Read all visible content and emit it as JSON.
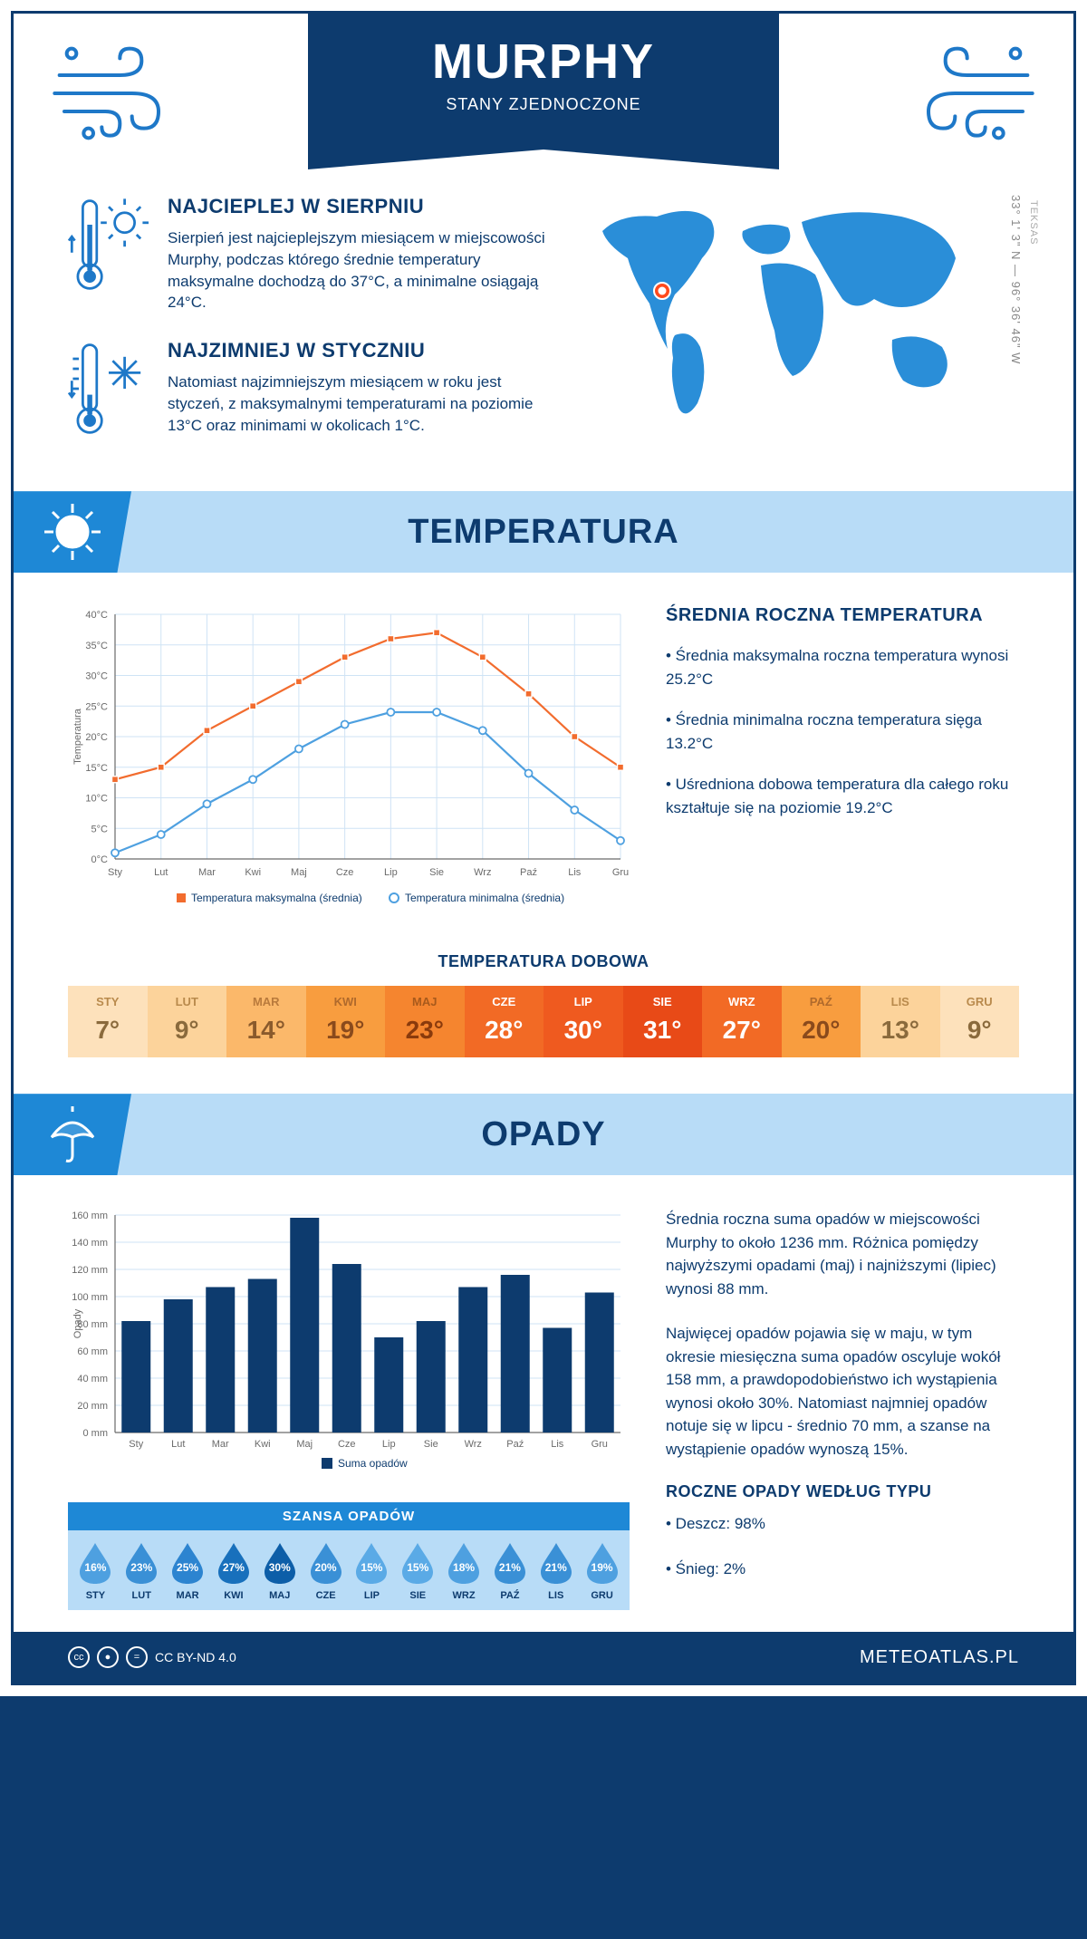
{
  "header": {
    "city": "MURPHY",
    "country": "STANY ZJEDNOCZONE"
  },
  "intro": {
    "hot": {
      "title": "NAJCIEPLEJ W SIERPNIU",
      "text": "Sierpień jest najcieplejszym miesiącem w miejscowości Murphy, podczas którego średnie temperatury maksymalne dochodzą do 37°C, a minimalne osiągają 24°C."
    },
    "cold": {
      "title": "NAJZIMNIEJ W STYCZNIU",
      "text": "Natomiast najzimniejszym miesiącem w roku jest styczeń, z maksymalnymi temperaturami na poziomie 13°C oraz minimami w okolicach 1°C."
    },
    "coords": "33° 1' 3\" N — 96° 36' 46\" W",
    "region": "TEKSAS"
  },
  "tempSection": {
    "title": "TEMPERATURA"
  },
  "tempChart": {
    "type": "line",
    "months": [
      "Sty",
      "Lut",
      "Mar",
      "Kwi",
      "Maj",
      "Cze",
      "Lip",
      "Sie",
      "Wrz",
      "Paź",
      "Lis",
      "Gru"
    ],
    "max_series": [
      13,
      15,
      21,
      25,
      29,
      33,
      36,
      37,
      33,
      27,
      20,
      15
    ],
    "min_series": [
      1,
      4,
      9,
      13,
      18,
      22,
      24,
      24,
      21,
      14,
      8,
      3
    ],
    "y_min": 0,
    "y_max": 40,
    "y_step": 5,
    "color_max": "#f26c2e",
    "color_min": "#4ea0e0",
    "grid_color": "#cfe3f5",
    "bg": "#ffffff",
    "y_label": "Temperatura",
    "legend_max": "Temperatura maksymalna (średnia)",
    "legend_min": "Temperatura minimalna (średnia)"
  },
  "tempAside": {
    "title": "ŚREDNIA ROCZNA TEMPERATURA",
    "p1": "• Średnia maksymalna roczna temperatura wynosi 25.2°C",
    "p2": "• Średnia minimalna roczna temperatura sięga 13.2°C",
    "p3": "• Uśredniona dobowa temperatura dla całego roku kształtuje się na poziomie 19.2°C"
  },
  "dailyTemp": {
    "title": "TEMPERATURA DOBOWA",
    "months": [
      "STY",
      "LUT",
      "MAR",
      "KWI",
      "MAJ",
      "CZE",
      "LIP",
      "SIE",
      "WRZ",
      "PAŹ",
      "LIS",
      "GRU"
    ],
    "values": [
      "7°",
      "9°",
      "14°",
      "19°",
      "23°",
      "28°",
      "30°",
      "31°",
      "27°",
      "20°",
      "13°",
      "9°"
    ],
    "cell_bg": [
      "#fde1bb",
      "#fcd39b",
      "#fbb86a",
      "#f89d3f",
      "#f5852f",
      "#f26a25",
      "#ef5a1f",
      "#e84a17",
      "#f26a25",
      "#f89d3f",
      "#fcd39b",
      "#fde1bb"
    ],
    "label_colors": [
      "#b98a4c",
      "#b98a4c",
      "#b97a3c",
      "#b06a2c",
      "#a85a1c",
      "#ffffff",
      "#ffffff",
      "#ffffff",
      "#ffffff",
      "#b06a2c",
      "#b98a4c",
      "#b98a4c"
    ],
    "value_colors": [
      "#8a6a3c",
      "#8a6a3c",
      "#8a5a2c",
      "#8a4a1c",
      "#8a3a0c",
      "#ffffff",
      "#ffffff",
      "#ffffff",
      "#ffffff",
      "#8a4a1c",
      "#8a6a3c",
      "#8a6a3c"
    ]
  },
  "opadSection": {
    "title": "OPADY"
  },
  "opadChart": {
    "type": "bar",
    "months": [
      "Sty",
      "Lut",
      "Mar",
      "Kwi",
      "Maj",
      "Cze",
      "Lip",
      "Sie",
      "Wrz",
      "Paź",
      "Lis",
      "Gru"
    ],
    "values": [
      82,
      98,
      107,
      113,
      158,
      124,
      70,
      82,
      107,
      116,
      77,
      103
    ],
    "y_min": 0,
    "y_max": 160,
    "y_step": 20,
    "bar_color": "#0d3b6e",
    "grid_color": "#cfe3f5",
    "y_label": "Opady",
    "legend": "Suma opadów"
  },
  "opadAside": {
    "p1": "Średnia roczna suma opadów w miejscowości Murphy to około 1236 mm. Różnica pomiędzy najwyższymi opadami (maj) i najniższymi (lipiec) wynosi 88 mm.",
    "p2": "Najwięcej opadów pojawia się w maju, w tym okresie miesięczna suma opadów oscyluje wokół 158 mm, a prawdopodobieństwo ich wystąpienia wynosi około 30%. Natomiast najmniej opadów notuje się w lipcu - średnio 70 mm, a szanse na wystąpienie opadów wynoszą 15%.",
    "typeTitle": "ROCZNE OPADY WEDŁUG TYPU",
    "type1": "• Deszcz: 98%",
    "type2": "• Śnieg: 2%"
  },
  "chance": {
    "title": "SZANSA OPADÓW",
    "months": [
      "STY",
      "LUT",
      "MAR",
      "KWI",
      "MAJ",
      "CZE",
      "LIP",
      "SIE",
      "WRZ",
      "PAŹ",
      "LIS",
      "GRU"
    ],
    "values": [
      "16%",
      "23%",
      "25%",
      "27%",
      "30%",
      "20%",
      "15%",
      "15%",
      "18%",
      "21%",
      "21%",
      "19%"
    ],
    "drop_colors": [
      "#4ea0e0",
      "#3a90d6",
      "#2c84d0",
      "#1870bc",
      "#0d5ea8",
      "#3a90d6",
      "#5aaae6",
      "#5aaae6",
      "#4ea0e0",
      "#3a90d6",
      "#3a90d6",
      "#4ea0e0"
    ]
  },
  "footer": {
    "license": "CC BY-ND 4.0",
    "brand": "METEOATLAS.PL"
  },
  "colors": {
    "primary": "#0d3b6e",
    "accent": "#1e88d6",
    "light": "#b8dcf7"
  }
}
